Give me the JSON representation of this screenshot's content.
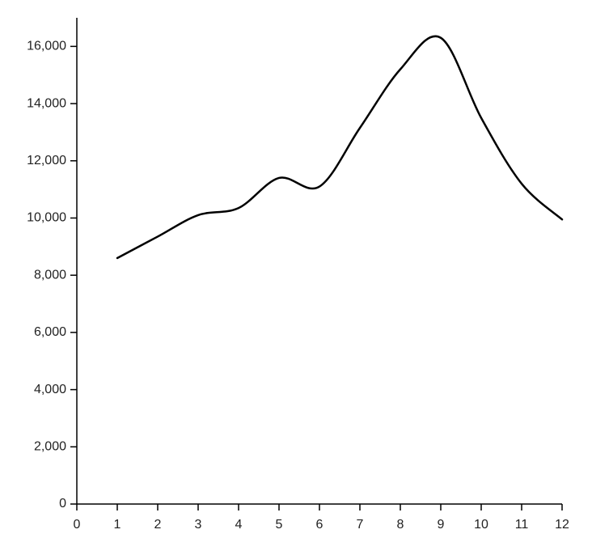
{
  "chart_data": {
    "type": "line",
    "title": "",
    "xlabel": "",
    "ylabel": "",
    "x": [
      1,
      2,
      3,
      4,
      5,
      6,
      7,
      8,
      9,
      10,
      11,
      12
    ],
    "series": [
      {
        "values": [
          8600,
          9350,
          10100,
          10350,
          11400,
          11100,
          13150,
          15200,
          16300,
          13500,
          11200,
          9950
        ]
      }
    ],
    "xlim": [
      0,
      12
    ],
    "ylim": [
      0,
      17000
    ],
    "x_ticks": [
      0,
      1,
      2,
      3,
      4,
      5,
      6,
      7,
      8,
      9,
      10,
      11,
      12
    ],
    "x_tick_labels": [
      "0",
      "1",
      "2",
      "3",
      "4",
      "5",
      "6",
      "7",
      "8",
      "9",
      "10",
      "11",
      "12"
    ],
    "y_ticks": [
      0,
      2000,
      4000,
      6000,
      8000,
      10000,
      12000,
      14000,
      16000
    ],
    "y_tick_labels": [
      "0",
      "2,000",
      "4,000",
      "6,000",
      "8,000",
      "10,000",
      "12,000",
      "14,000",
      "16,000"
    ],
    "grid": false,
    "legend": "none",
    "line_color": "#000000"
  }
}
